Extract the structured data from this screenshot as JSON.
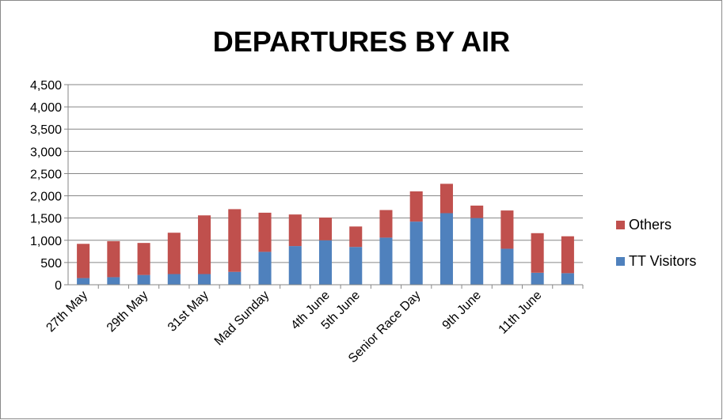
{
  "chart_data": {
    "type": "bar",
    "stacked": true,
    "title": "DEPARTURES BY AIR",
    "xlabel": "",
    "ylabel": "",
    "ylim": [
      0,
      4500
    ],
    "ytick_step": 500,
    "yticks": [
      "0",
      "500",
      "1,000",
      "1,500",
      "2,000",
      "2,500",
      "3,000",
      "3,500",
      "4,000",
      "4,500"
    ],
    "grid": true,
    "legend_position": "right",
    "categories": [
      "27th May",
      "",
      "29th May",
      "",
      "31st May",
      "",
      "Mad Sunday",
      "",
      "4th June",
      "5th June",
      "",
      "Senior Race Day",
      "",
      "9th June",
      "",
      "11th June",
      ""
    ],
    "series": [
      {
        "name": "TT Visitors",
        "color": "#4f81bd",
        "values": [
          150,
          170,
          220,
          240,
          240,
          290,
          740,
          870,
          1000,
          850,
          1060,
          1420,
          1610,
          1500,
          810,
          270,
          260
        ]
      },
      {
        "name": "Others",
        "color": "#c0504d",
        "values": [
          770,
          810,
          720,
          930,
          1320,
          1410,
          880,
          710,
          510,
          460,
          620,
          680,
          660,
          280,
          860,
          890,
          830
        ]
      }
    ]
  }
}
